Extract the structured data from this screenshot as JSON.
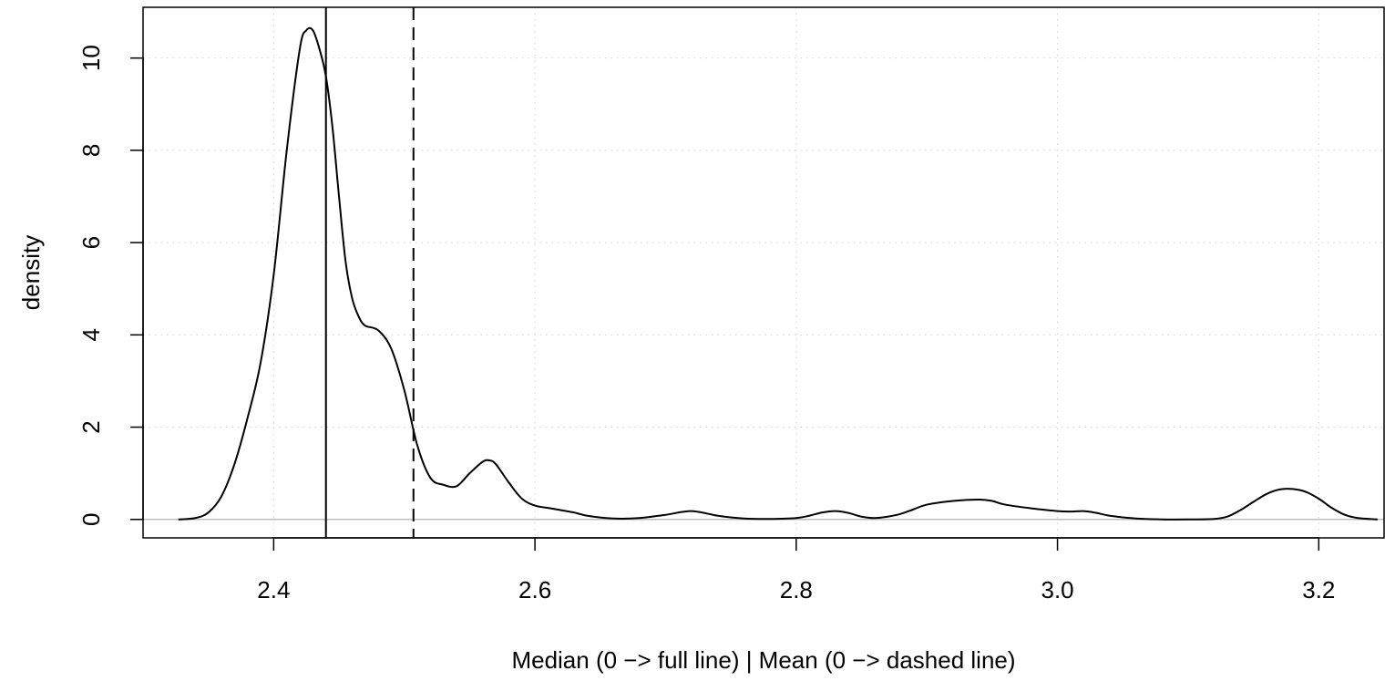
{
  "chart_data": {
    "type": "line",
    "title": "",
    "xlabel": "Median (0 −> full line) | Mean (0 −> dashed line)",
    "ylabel": "density",
    "xlim": [
      2.3,
      3.25
    ],
    "ylim": [
      -0.4,
      11.1
    ],
    "xticks": [
      2.4,
      2.6,
      2.8,
      3.0,
      3.2
    ],
    "xtick_labels": [
      "2.4",
      "2.6",
      "2.8",
      "3.0",
      "3.2"
    ],
    "yticks": [
      0,
      2,
      4,
      6,
      8,
      10
    ],
    "ytick_labels": [
      "0",
      "2",
      "4",
      "6",
      "8",
      "10"
    ],
    "grid": true,
    "legend": "none",
    "series": [
      {
        "x": [
          2.327,
          2.34,
          2.35,
          2.36,
          2.37,
          2.38,
          2.39,
          2.4,
          2.41,
          2.42,
          2.425,
          2.43,
          2.435,
          2.44,
          2.445,
          2.45,
          2.455,
          2.46,
          2.465,
          2.47,
          2.48,
          2.49,
          2.5,
          2.51,
          2.52,
          2.53,
          2.54,
          2.55,
          2.56,
          2.565,
          2.57,
          2.58,
          2.59,
          2.6,
          2.61,
          2.62,
          2.63,
          2.64,
          2.66,
          2.68,
          2.7,
          2.72,
          2.74,
          2.76,
          2.78,
          2.8,
          2.81,
          2.82,
          2.83,
          2.84,
          2.85,
          2.86,
          2.87,
          2.88,
          2.89,
          2.9,
          2.92,
          2.94,
          2.95,
          2.96,
          2.98,
          3.0,
          3.01,
          3.02,
          3.03,
          3.04,
          3.06,
          3.08,
          3.1,
          3.12,
          3.13,
          3.14,
          3.15,
          3.16,
          3.17,
          3.18,
          3.19,
          3.2,
          3.21,
          3.22,
          3.23,
          3.245
        ],
        "y": [
          0.0,
          0.03,
          0.15,
          0.5,
          1.2,
          2.2,
          3.4,
          5.3,
          8.0,
          10.2,
          10.6,
          10.6,
          10.2,
          9.6,
          8.5,
          7.0,
          5.6,
          4.8,
          4.4,
          4.2,
          4.1,
          3.7,
          2.8,
          1.6,
          0.9,
          0.75,
          0.72,
          1.0,
          1.25,
          1.28,
          1.2,
          0.8,
          0.45,
          0.3,
          0.25,
          0.2,
          0.15,
          0.08,
          0.02,
          0.03,
          0.1,
          0.18,
          0.08,
          0.02,
          0.01,
          0.03,
          0.08,
          0.15,
          0.18,
          0.14,
          0.06,
          0.03,
          0.06,
          0.12,
          0.22,
          0.32,
          0.4,
          0.43,
          0.4,
          0.32,
          0.24,
          0.18,
          0.17,
          0.18,
          0.14,
          0.08,
          0.02,
          0.0,
          0.0,
          0.01,
          0.06,
          0.2,
          0.38,
          0.55,
          0.65,
          0.66,
          0.6,
          0.45,
          0.25,
          0.1,
          0.03,
          0.0
        ]
      }
    ],
    "vlines": [
      {
        "x": 2.44,
        "style": "solid"
      },
      {
        "x": 2.507,
        "style": "dashed"
      }
    ],
    "hline": {
      "y": 0,
      "color": "#bebebe"
    },
    "colors": {
      "line": "#000000",
      "grid": "#d3d3d3",
      "zero_line": "#bebebe"
    }
  }
}
